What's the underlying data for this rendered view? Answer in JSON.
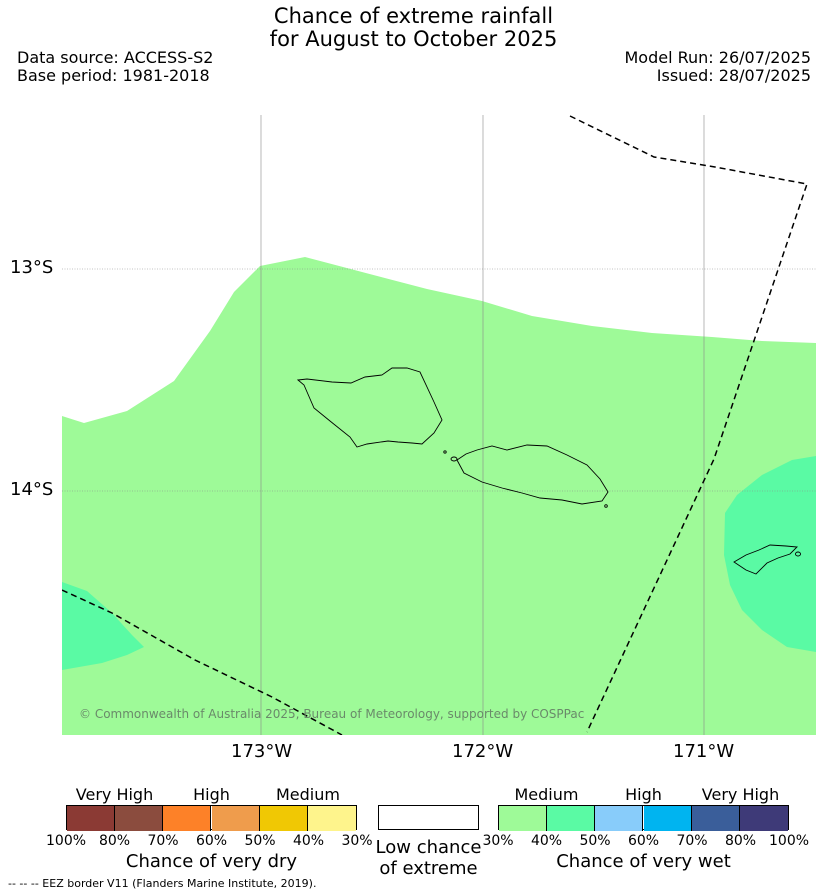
{
  "header": {
    "title_line1": "Chance of extreme rainfall",
    "title_line2": "for August to October 2025",
    "data_source": "Data source: ACCESS-S2",
    "base_period": "Base period: 1981-2018",
    "model_run": "Model Run: 26/07/2025",
    "issued": "Issued: 28/07/2025"
  },
  "map": {
    "lat_labels": [
      "13°S",
      "14°S"
    ],
    "lon_labels": [
      "173°W",
      "172°W",
      "171°W"
    ],
    "copyright": "© Commonwealth of Australia 2025, Bureau of Meteorology, supported by COSPPac",
    "colors": {
      "medium_wet": "#9efa98",
      "high_wet": "#5afaa4",
      "low": "#ffffff"
    }
  },
  "legend": {
    "dry": {
      "groups": [
        "Very High",
        "High",
        "Medium"
      ],
      "ticks": [
        "100%",
        "80%",
        "70%",
        "60%",
        "50%",
        "40%",
        "30%"
      ],
      "colors": [
        "#8b3a34",
        "#8b4c3e",
        "#fd8128",
        "#ef9c4c",
        "#f0c804",
        "#fef48c"
      ],
      "caption": "Chance of very dry"
    },
    "low": {
      "caption_line1": "Low chance",
      "caption_line2": "of extreme"
    },
    "wet": {
      "groups": [
        "Medium",
        "High",
        "Very High"
      ],
      "ticks": [
        "30%",
        "40%",
        "50%",
        "60%",
        "70%",
        "80%",
        "100%"
      ],
      "colors": [
        "#9efa98",
        "#5afaa4",
        "#88ccfa",
        "#00b4f0",
        "#3a5e9a",
        "#3e3a78"
      ],
      "caption": "Chance of very wet"
    },
    "eez_note": "--  --  -- EEZ border V11 (Flanders Marine Institute, 2019)."
  }
}
